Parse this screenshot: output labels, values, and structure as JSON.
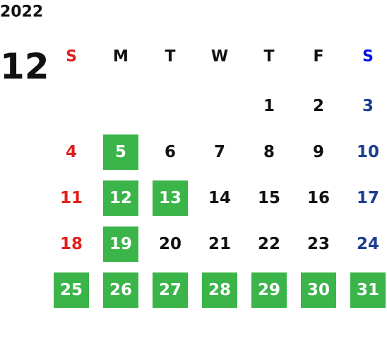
{
  "year": "2022",
  "month": "12",
  "weekdays": [
    "S",
    "M",
    "T",
    "W",
    "T",
    "F",
    "S"
  ],
  "colors": {
    "sunday": "#e0201e",
    "saturday_header": "#0010e8",
    "saturday": "#1b3f8f",
    "weekday": "#111111",
    "highlight_fill": "#3bb54a",
    "highlight_text": "#ffffff"
  },
  "weeks": [
    [
      null,
      null,
      null,
      null,
      {
        "day": "1"
      },
      {
        "day": "2"
      },
      {
        "day": "3"
      }
    ],
    [
      {
        "day": "4"
      },
      {
        "day": "5",
        "highlight": true
      },
      {
        "day": "6"
      },
      {
        "day": "7"
      },
      {
        "day": "8"
      },
      {
        "day": "9"
      },
      {
        "day": "10"
      }
    ],
    [
      {
        "day": "11"
      },
      {
        "day": "12",
        "highlight": true
      },
      {
        "day": "13",
        "highlight": true
      },
      {
        "day": "14"
      },
      {
        "day": "15"
      },
      {
        "day": "16"
      },
      {
        "day": "17"
      }
    ],
    [
      {
        "day": "18"
      },
      {
        "day": "19",
        "highlight": true
      },
      {
        "day": "20"
      },
      {
        "day": "21"
      },
      {
        "day": "22"
      },
      {
        "day": "23"
      },
      {
        "day": "24"
      }
    ],
    [
      {
        "day": "25",
        "highlight": true
      },
      {
        "day": "26",
        "highlight": true
      },
      {
        "day": "27",
        "highlight": true
      },
      {
        "day": "28",
        "highlight": true
      },
      {
        "day": "29",
        "highlight": true
      },
      {
        "day": "30",
        "highlight": true
      },
      {
        "day": "31",
        "highlight": true
      }
    ]
  ]
}
